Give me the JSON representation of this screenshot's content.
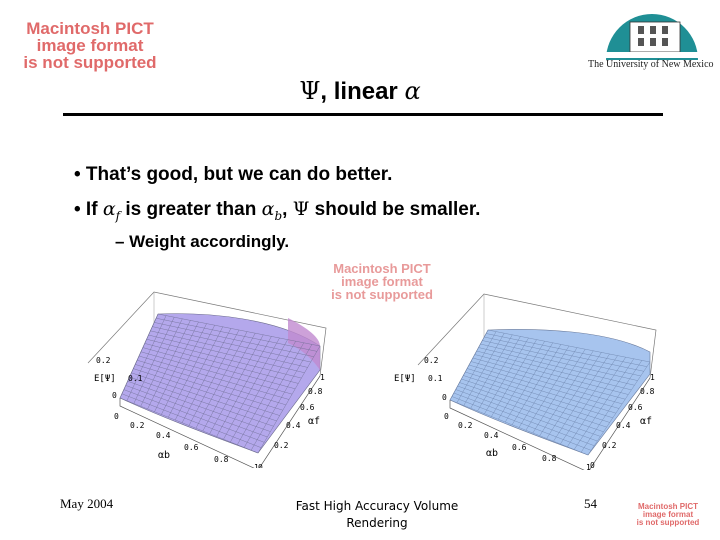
{
  "header": {
    "pict_notice_lines": [
      "Macintosh PICT",
      "image format",
      "is not supported"
    ],
    "logo_caption": "The University of New Mexico",
    "title_psi": "Ψ",
    "title_text": ", linear ",
    "title_alpha": "α"
  },
  "body": {
    "bullet_1": "• That’s good, but we can do better.",
    "bullet_2_pre": "• If ",
    "bullet_2_alpha1": "α",
    "bullet_2_sub1": "f",
    "bullet_2_mid": " is greater than ",
    "bullet_2_alpha2": "α",
    "bullet_2_sub2": "b",
    "bullet_2_comma": ", ",
    "bullet_2_psi": "Ψ",
    "bullet_2_post": " should be smaller.",
    "subbullet_1": "– Weight accordingly."
  },
  "plots": {
    "left": {
      "zlabel": "E[Ψ]",
      "z_ticks": [
        "0.2",
        "0.1",
        "0"
      ],
      "ab_label": "αb",
      "af_label": "αf",
      "ab_ticks": [
        "0",
        "0.2",
        "0.4",
        "0.6",
        "0.8",
        "1"
      ],
      "af_ticks": [
        "1",
        "0.8",
        "0.6",
        "0.4",
        "0.2",
        "0"
      ],
      "surface_color": "#b4a8ec"
    },
    "right": {
      "zlabel": "E[Ψ]",
      "z_ticks": [
        "0.2",
        "0.1",
        "0"
      ],
      "ab_label": "αb",
      "af_label": "αf",
      "ab_ticks": [
        "0",
        "0.2",
        "0.4",
        "0.6",
        "0.8",
        "1"
      ],
      "af_ticks": [
        "1",
        "0.8",
        "0.6",
        "0.4",
        "0.2",
        "0"
      ],
      "surface_color": "#a7c4ee"
    }
  },
  "footer": {
    "date": "May 2004",
    "title_line1": "Fast High Accuracy Volume",
    "title_line2": "Rendering",
    "page_number": "54"
  },
  "colors": {
    "pict_notice": "#e06a6a",
    "logo_teal": "#1f8f95"
  }
}
